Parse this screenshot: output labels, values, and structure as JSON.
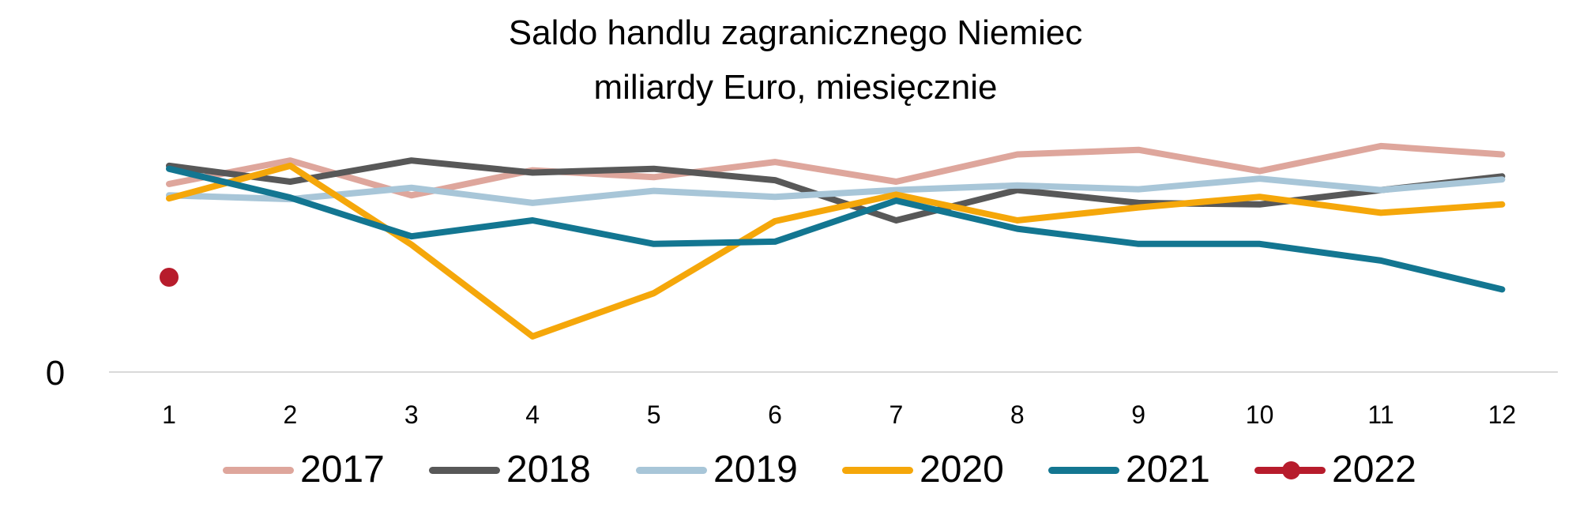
{
  "title": {
    "line1": "Saldo handlu zagranicznego  Niemiec",
    "line2": "miliardy Euro, miesięcznie"
  },
  "chart_data": {
    "type": "line",
    "title": "Saldo handlu zagranicznego  Niemiec\nmiliardy Euro, miesięcznie",
    "xlabel": "",
    "ylabel": "",
    "categories": [
      "1",
      "2",
      "3",
      "4",
      "5",
      "6",
      "7",
      "8",
      "9",
      "10",
      "11",
      "12"
    ],
    "y_ticks": [
      "0"
    ],
    "ylim": [
      0,
      28
    ],
    "grid": false,
    "legend_position": "bottom",
    "series": [
      {
        "name": "2017",
        "color": "#dea69c",
        "marker": false,
        "values": [
          24.8,
          27.9,
          23.3,
          26.6,
          25.7,
          27.7,
          25.1,
          28.7,
          29.3,
          26.5,
          29.8,
          28.7
        ]
      },
      {
        "name": "2018",
        "color": "#585858",
        "marker": false,
        "values": [
          27.2,
          25.1,
          27.9,
          26.3,
          26.8,
          25.3,
          20.0,
          24.0,
          22.3,
          22.1,
          24.0,
          25.8
        ]
      },
      {
        "name": "2019",
        "color": "#a8c6d8",
        "marker": false,
        "values": [
          23.3,
          22.8,
          24.3,
          22.3,
          23.9,
          23.1,
          24.0,
          24.6,
          24.1,
          25.5,
          24.0,
          25.4
        ]
      },
      {
        "name": "2020",
        "color": "#f5a70a",
        "marker": false,
        "values": [
          22.9,
          27.2,
          16.8,
          4.7,
          10.4,
          19.9,
          23.4,
          20.0,
          21.7,
          23.1,
          21.0,
          22.1
        ]
      },
      {
        "name": "2021",
        "color": "#137691",
        "marker": false,
        "values": [
          26.8,
          23.0,
          17.9,
          20.0,
          16.9,
          17.2,
          22.6,
          18.9,
          16.9,
          16.9,
          14.7,
          10.9
        ]
      },
      {
        "name": "2022",
        "color": "#b71c2c",
        "marker": true,
        "values": [
          12.5,
          null,
          null,
          null,
          null,
          null,
          null,
          null,
          null,
          null,
          null,
          null
        ]
      }
    ]
  }
}
